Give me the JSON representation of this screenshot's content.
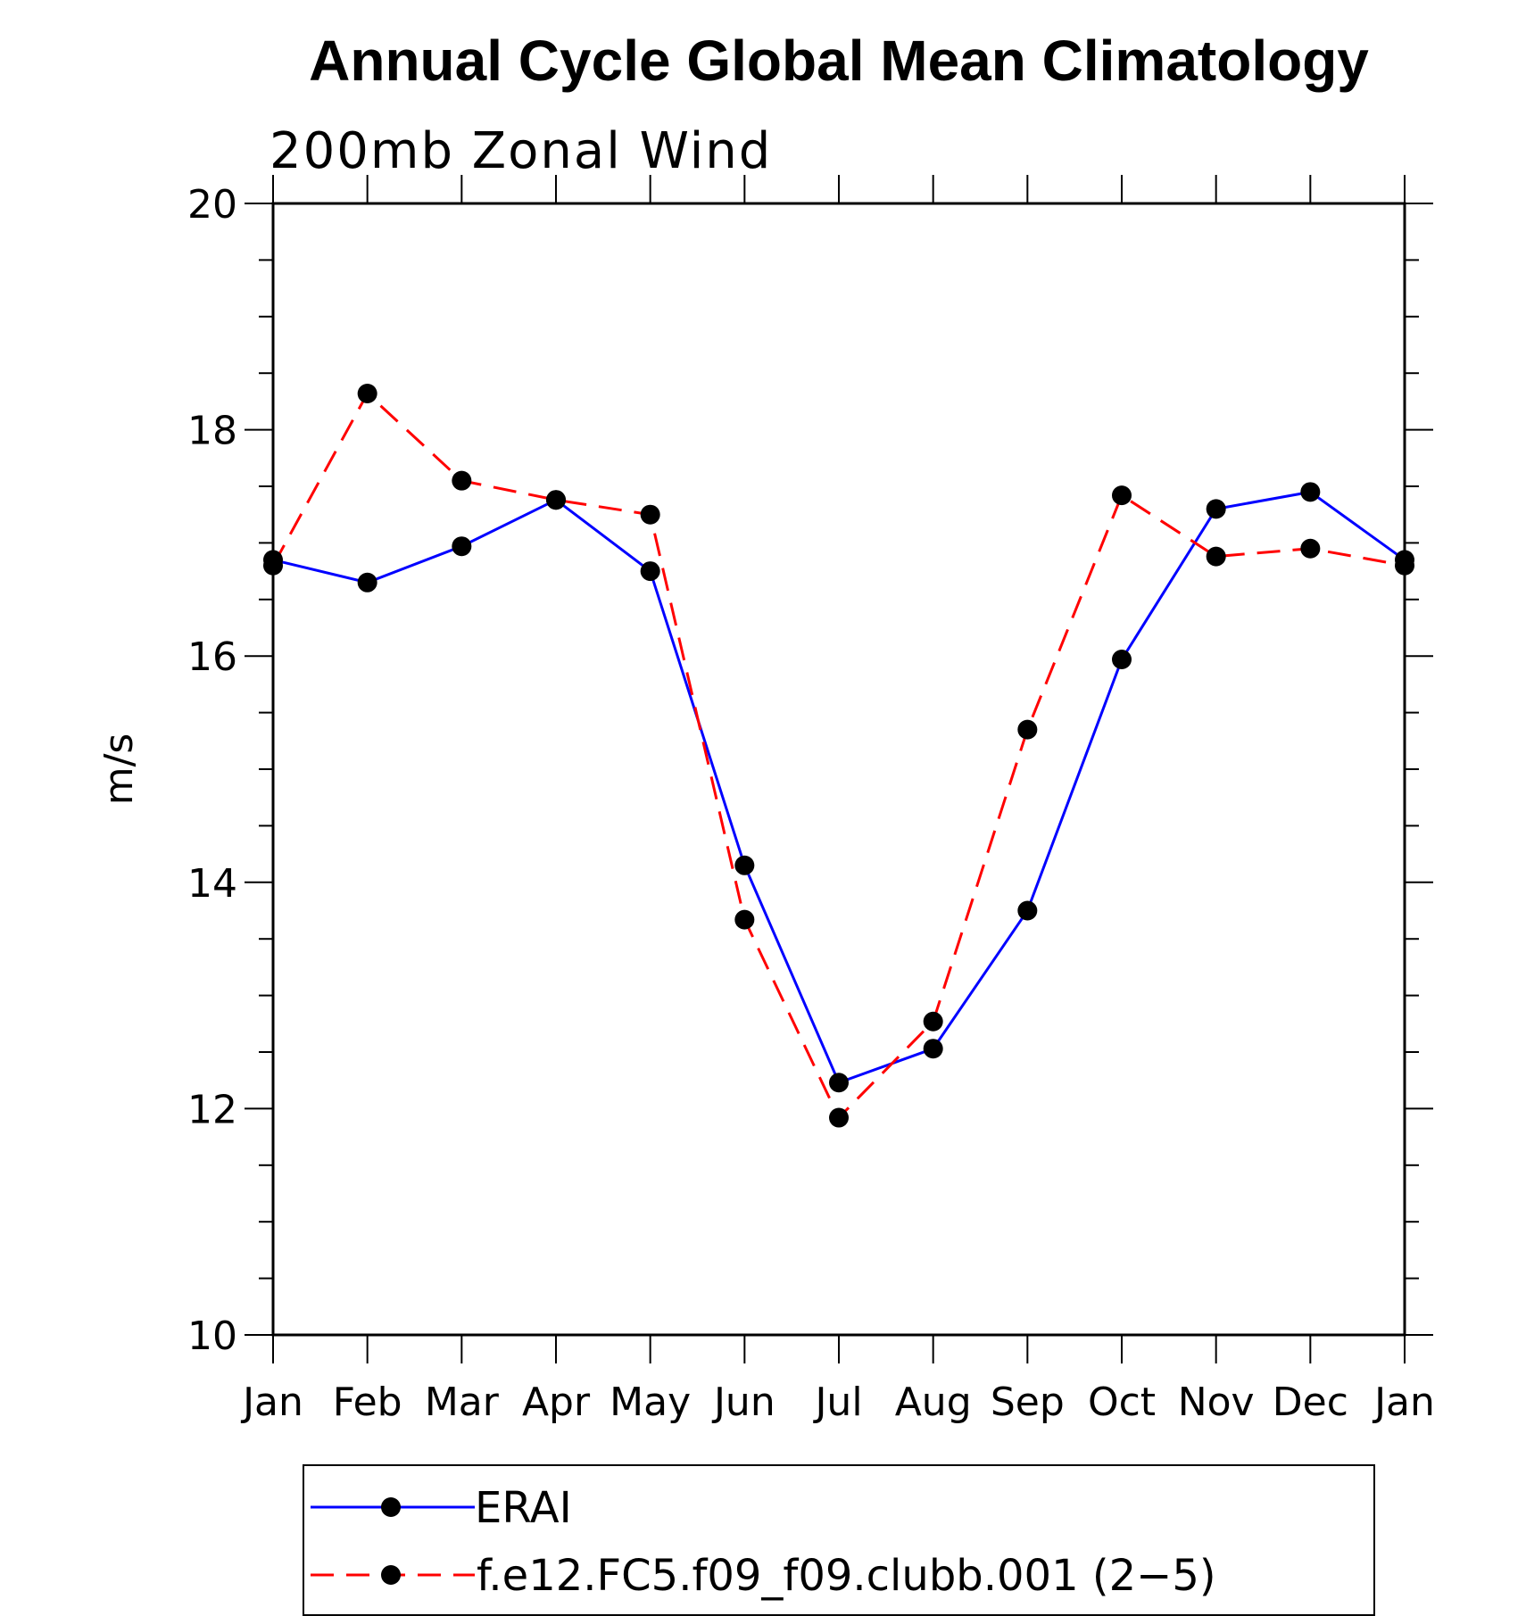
{
  "chart_data": {
    "type": "line",
    "title": "Annual Cycle Global Mean Climatology",
    "subtitle": "200mb  Zonal  Wind",
    "ylabel": "m/s",
    "xlabel": "",
    "ylim": [
      10,
      20
    ],
    "yticks": [
      10,
      12,
      14,
      16,
      18,
      20
    ],
    "categories": [
      "Jan",
      "Feb",
      "Mar",
      "Apr",
      "May",
      "Jun",
      "Jul",
      "Aug",
      "Sep",
      "Oct",
      "Nov",
      "Dec",
      "Jan"
    ],
    "grid": false,
    "legend": "bottom",
    "series": [
      {
        "name": "ERAI",
        "color": "#0000ff",
        "dash": "solid",
        "values": [
          16.85,
          16.65,
          16.97,
          17.38,
          16.75,
          14.15,
          12.23,
          12.53,
          13.75,
          15.97,
          17.3,
          17.45,
          16.85
        ]
      },
      {
        "name": "f.e12.FC5.f09_f09.clubb.001 (2−5)",
        "color": "#ff0000",
        "dash": "dashed",
        "values": [
          16.8,
          18.32,
          17.55,
          17.38,
          17.25,
          13.67,
          11.92,
          12.77,
          15.35,
          17.42,
          16.88,
          16.95,
          16.8
        ]
      }
    ]
  }
}
